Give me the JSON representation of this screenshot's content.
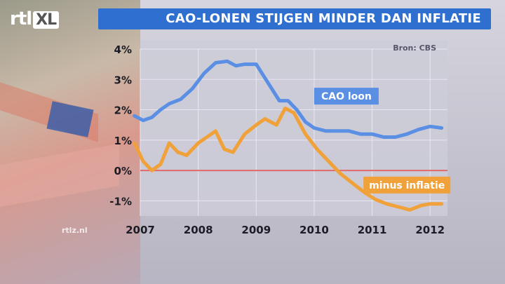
{
  "header": {
    "logo_text": "rtl",
    "logo_badge": "XL",
    "title": "CAO-LONEN STIJGEN MINDER DAN INFLATIE",
    "source": "Bron: CBS",
    "watermark": "rtlz.nl"
  },
  "colors": {
    "title_bar": "#2f6fd0",
    "cao_line": "#5b8fe4",
    "inflation_line": "#f0a13a",
    "zero_line": "#e06a6a"
  },
  "chart_data": {
    "type": "line",
    "title": "CAO-LONEN STIJGEN MINDER DAN INFLATIE",
    "xlabel": "",
    "ylabel": "",
    "xlim": [
      2007,
      2012.3
    ],
    "ylim": [
      -1.5,
      4
    ],
    "x_ticks": [
      2007,
      2008,
      2009,
      2010,
      2011,
      2012
    ],
    "x_tick_labels": [
      "2007",
      "2008",
      "2009",
      "2010",
      "2011",
      "2012"
    ],
    "y_ticks": [
      -1,
      0,
      1,
      2,
      3,
      4
    ],
    "y_tick_labels": [
      "-1%",
      "0%",
      "1%",
      "2%",
      "3%",
      "4%"
    ],
    "grid": true,
    "series": [
      {
        "name": "CAO loon",
        "color": "#5b8fe4",
        "x": [
          2006.9,
          2007.05,
          2007.2,
          2007.35,
          2007.5,
          2007.7,
          2007.9,
          2008.1,
          2008.3,
          2008.5,
          2008.65,
          2008.8,
          2009.0,
          2009.2,
          2009.4,
          2009.55,
          2009.7,
          2009.85,
          2010.0,
          2010.2,
          2010.4,
          2010.6,
          2010.8,
          2011.0,
          2011.2,
          2011.4,
          2011.6,
          2011.8,
          2012.0,
          2012.2
        ],
        "y": [
          1.8,
          1.65,
          1.75,
          2.0,
          2.2,
          2.35,
          2.7,
          3.2,
          3.55,
          3.6,
          3.45,
          3.5,
          3.5,
          2.9,
          2.3,
          2.3,
          2.0,
          1.6,
          1.4,
          1.3,
          1.3,
          1.3,
          1.2,
          1.2,
          1.1,
          1.1,
          1.2,
          1.35,
          1.45,
          1.4
        ]
      },
      {
        "name": "minus inflatie",
        "color": "#f0a13a",
        "x": [
          2006.9,
          2007.05,
          2007.2,
          2007.35,
          2007.5,
          2007.65,
          2007.8,
          2008.0,
          2008.15,
          2008.3,
          2008.45,
          2008.6,
          2008.8,
          2009.0,
          2009.15,
          2009.35,
          2009.5,
          2009.65,
          2009.85,
          2010.05,
          2010.25,
          2010.45,
          2010.65,
          2010.85,
          2011.05,
          2011.25,
          2011.45,
          2011.65,
          2011.85,
          2012.0,
          2012.2
        ],
        "y": [
          0.9,
          0.3,
          0.0,
          0.2,
          0.9,
          0.6,
          0.5,
          0.9,
          1.1,
          1.3,
          0.7,
          0.6,
          1.2,
          1.5,
          1.7,
          1.5,
          2.05,
          1.9,
          1.2,
          0.7,
          0.3,
          -0.1,
          -0.4,
          -0.7,
          -0.95,
          -1.1,
          -1.2,
          -1.3,
          -1.15,
          -1.1,
          -1.1
        ]
      }
    ],
    "annotations": [
      {
        "text": "CAO loon",
        "series": "CAO loon"
      },
      {
        "text": "minus inflatie",
        "series": "minus inflatie"
      }
    ],
    "reference_line": {
      "y": 0,
      "color": "#e06a6a"
    }
  }
}
